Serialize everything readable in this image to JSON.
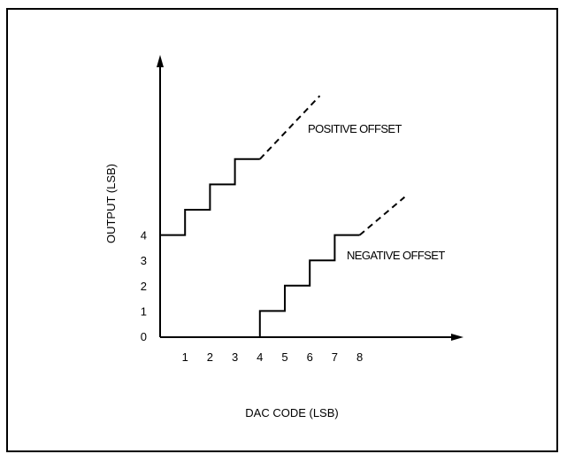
{
  "chart_data": {
    "type": "line",
    "title": "",
    "xlabel": "DAC CODE (LSB)",
    "ylabel": "OUTPUT (LSB)",
    "x_ticks": [
      "1",
      "2",
      "3",
      "4",
      "5",
      "6",
      "7",
      "8"
    ],
    "y_ticks": [
      "0",
      "1",
      "2",
      "3",
      "4"
    ],
    "xlim": [
      0,
      12
    ],
    "ylim": [
      0,
      11
    ],
    "grid": false,
    "legend": "none",
    "series": [
      {
        "name": "POSITIVE OFFSET",
        "style": "step",
        "solid": [
          [
            0,
            4
          ],
          [
            1,
            4
          ],
          [
            1,
            5
          ],
          [
            2,
            5
          ],
          [
            2,
            6
          ],
          [
            3,
            6
          ],
          [
            3,
            7
          ],
          [
            4,
            7
          ]
        ],
        "dashed": [
          [
            4,
            7
          ],
          [
            6.4,
            9.5
          ]
        ]
      },
      {
        "name": "NEGATIVE OFFSET",
        "style": "step",
        "solid": [
          [
            4,
            0
          ],
          [
            4,
            1
          ],
          [
            5,
            1
          ],
          [
            5,
            2
          ],
          [
            6,
            2
          ],
          [
            6,
            3
          ],
          [
            7,
            3
          ],
          [
            7,
            4
          ],
          [
            8,
            4
          ]
        ],
        "dashed": [
          [
            8,
            4
          ],
          [
            9.8,
            5.5
          ]
        ]
      }
    ]
  }
}
